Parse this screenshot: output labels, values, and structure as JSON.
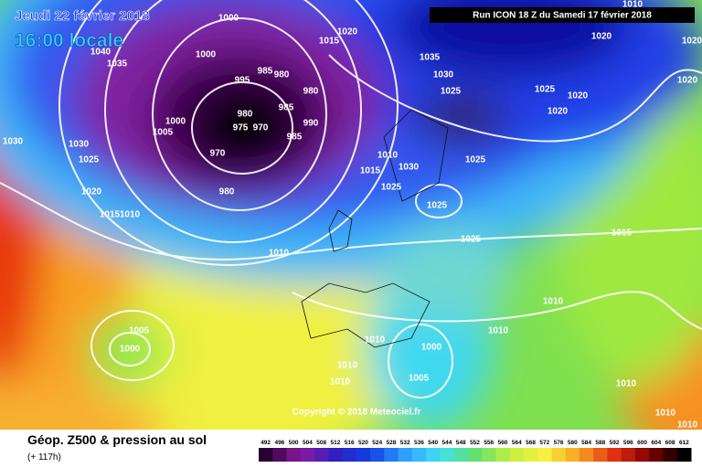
{
  "header": {
    "date": "Jeudi 22 février 2018",
    "time": "16:00 locale",
    "run": "Run ICON 18 Z du Samedi 17 février 2018"
  },
  "copyright": "Copyright © 2018 Meteociel.fr",
  "legend": {
    "title": "Géop. Z500 & pression au sol",
    "lead": "(+ 117h)",
    "ticks": [
      492,
      496,
      500,
      504,
      508,
      512,
      516,
      520,
      524,
      528,
      532,
      536,
      540,
      544,
      548,
      552,
      556,
      560,
      564,
      568,
      572,
      576,
      580,
      584,
      588,
      592,
      596,
      600,
      604,
      608,
      612
    ]
  },
  "isobar_labels": [
    "1000",
    "1040",
    "1035",
    "1000",
    "995",
    "985",
    "980",
    "980",
    "985",
    "990",
    "985",
    "980",
    "975",
    "970",
    "970",
    "1000",
    "1005",
    "980",
    "1030",
    "1030",
    "1025",
    "1020",
    "1015",
    "1010",
    "1010",
    "1015",
    "1020",
    "1035",
    "1030",
    "1025",
    "1020",
    "1025",
    "1020",
    "1020",
    "1025",
    "1010",
    "1030",
    "1015",
    "1025",
    "1025",
    "1025",
    "1015",
    "1010",
    "1010",
    "1010",
    "1010",
    "1010",
    "1000",
    "1005",
    "1005",
    "1000",
    "1010",
    "1010",
    "1010",
    "1010",
    "1020",
    "1020"
  ]
}
